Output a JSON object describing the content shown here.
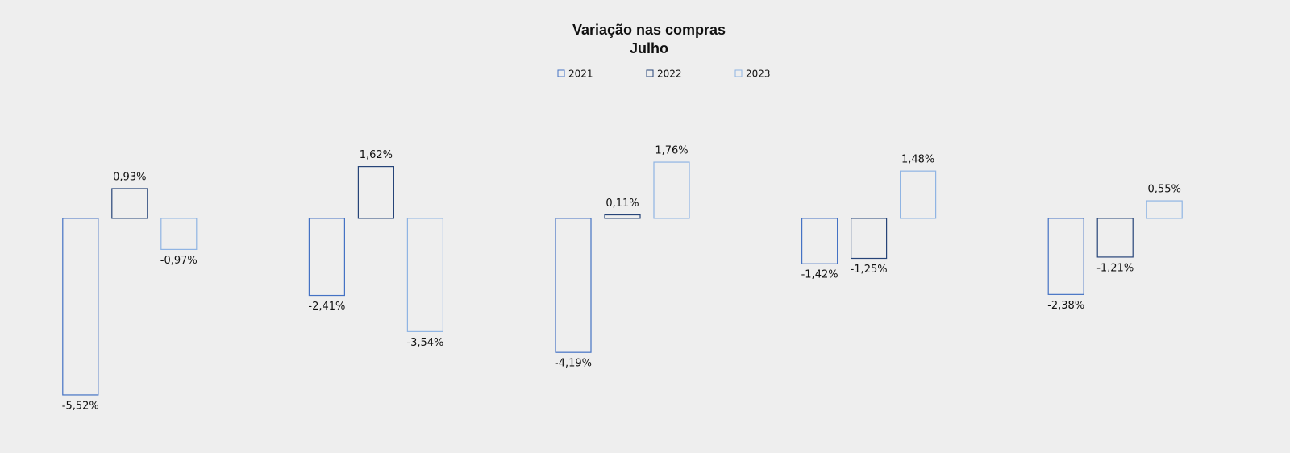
{
  "chart_data": {
    "type": "bar",
    "title": "Variação nas compras",
    "subtitle": "Julho",
    "categories": [
      null,
      null,
      null,
      null,
      null
    ],
    "series": [
      {
        "name": "2021",
        "color": "#4472c4",
        "values": [
          -5.52,
          -2.41,
          -4.19,
          -1.42,
          -2.38
        ],
        "value_labels": [
          "-5,52%",
          "-2,41%",
          "-4,19%",
          "-1,42%",
          "-2,38%"
        ]
      },
      {
        "name": "2022",
        "color": "#264478",
        "values": [
          0.93,
          1.62,
          0.11,
          -1.25,
          -1.21
        ],
        "value_labels": [
          "0,93%",
          "1,62%",
          "0,11%",
          "-1,25%",
          "-1,21%"
        ]
      },
      {
        "name": "2023",
        "color": "#8fb4e3",
        "values": [
          -0.97,
          -3.54,
          1.76,
          1.48,
          0.55
        ],
        "value_labels": [
          "-0,97%",
          "-3,54%",
          "1,76%",
          "1,48%",
          "0,55%"
        ]
      }
    ],
    "ylim": [
      -6,
      3.5
    ],
    "grid": false,
    "legend": "top"
  }
}
